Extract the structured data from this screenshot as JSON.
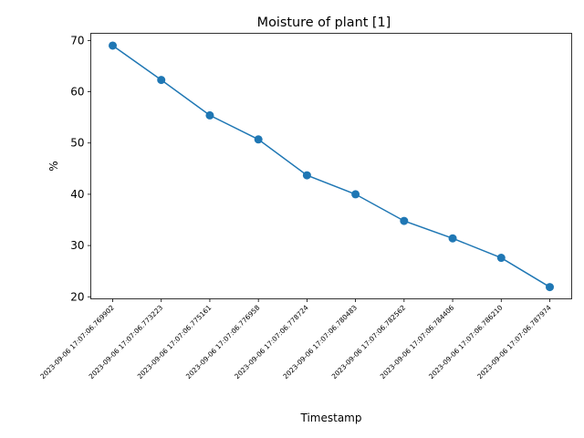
{
  "chart_data": {
    "type": "line",
    "title": "Moisture of plant [1]",
    "xlabel": "Timestamp",
    "ylabel": "%",
    "x": [
      "2023-09-06 17:07:06.769902",
      "2023-09-06 17:07:06.773223",
      "2023-09-06 17:07:06.775161",
      "2023-09-06 17:07:06.776958",
      "2023-09-06 17:07:06.778724",
      "2023-09-06 17:07:06.780483",
      "2023-09-06 17:07:06.782562",
      "2023-09-06 17:07:06.784406",
      "2023-09-06 17:07:06.786210",
      "2023-09-06 17:07:06.787974"
    ],
    "series": [
      {
        "values": [
          69.0,
          62.3,
          55.4,
          50.7,
          43.7,
          40.0,
          34.8,
          31.4,
          27.6,
          21.9
        ],
        "color": "#1f77b4",
        "marker": "circle"
      }
    ],
    "ylim": [
      19.6,
      71.4
    ],
    "yticks": [
      20,
      30,
      40,
      50,
      60,
      70
    ],
    "grid": false,
    "legend": "none"
  }
}
